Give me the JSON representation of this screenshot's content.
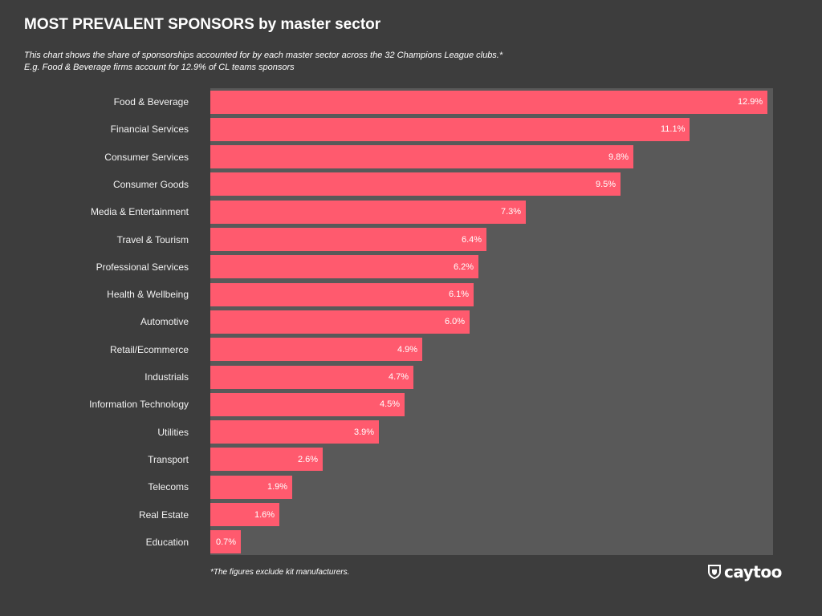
{
  "title": "MOST PREVALENT SPONSORS by master sector",
  "subtitle_line1": "This chart shows the share of sponsorships accounted for by each master sector across the 32 Champions League clubs.*",
  "subtitle_line2": "E.g. Food & Beverage firms account for 12.9% of CL teams sponsors",
  "footnote": "*The figures exclude kit manufacturers.",
  "brand": {
    "name": "caytoo",
    "icon": "shield-icon"
  },
  "colors": {
    "background": "#3d3d3d",
    "plot_background": "#595959",
    "bar": "#ff5a6e"
  },
  "chart_data": {
    "type": "bar",
    "orientation": "horizontal",
    "categories": [
      "Food & Beverage",
      "Financial Services",
      "Consumer Services",
      "Consumer Goods",
      "Media & Entertainment",
      "Travel & Tourism",
      "Professional Services",
      "Health & Wellbeing",
      "Automotive",
      "Retail/Ecommerce",
      "Industrials",
      "Information Technology",
      "Utilities",
      "Transport",
      "Telecoms",
      "Real Estate",
      "Education"
    ],
    "values": [
      12.9,
      11.1,
      9.8,
      9.5,
      7.3,
      6.4,
      6.2,
      6.1,
      6.0,
      4.9,
      4.7,
      4.5,
      3.9,
      2.6,
      1.9,
      1.6,
      0.7
    ],
    "value_labels": [
      "12.9%",
      "11.1%",
      "9.8%",
      "9.5%",
      "7.3%",
      "6.4%",
      "6.2%",
      "6.1%",
      "6.0%",
      "4.9%",
      "4.7%",
      "4.5%",
      "3.9%",
      "2.6%",
      "1.9%",
      "1.6%",
      "0.7%"
    ],
    "unit": "%",
    "xlim": [
      0,
      13
    ],
    "grid": false,
    "legend": "none"
  }
}
